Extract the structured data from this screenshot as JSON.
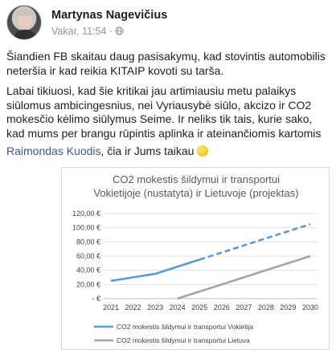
{
  "post": {
    "author": "Martynas Nagevičius",
    "timestamp": "Vakar, 11:54",
    "separator": "·",
    "privacy_icon": "globe-icon",
    "paragraph1": "Šiandien FB skaitau daug pasisakymų, kad stovintis automobilis neteršia ir kad reikia KITAIP kovoti su tarša.",
    "paragraph2": "Labai tikiuosi, kad šie kritikai jau artimiausiu metu palaikys siūlomus ambicingesnius, nei Vyriausybė siūlo, akcizo ir CO2 mokesčio kėlimo siūlymus Seime. Ir neliks tik tais, kurie sako, kad mums per brangu rūpintis aplinka ir ateinančiomis kartomis",
    "mention": "Raimondas Kuodis",
    "mention_suffix": ", čia ir Jums taikau",
    "emoji": "slightly-smiling-face"
  },
  "chart_data": {
    "type": "line",
    "title_line1": "CO2 mokestis šildymui ir transportui",
    "title_line2": "Vokietijoje (nustatyta) ir Lietuvoje (projektas)",
    "categories": [
      "2021",
      "2022",
      "2023",
      "2024",
      "2025",
      "2026",
      "2027",
      "2028",
      "2029",
      "2030"
    ],
    "y_ticks": [
      "120,00 €",
      "100,00 €",
      "80,00 €",
      "60,00 €",
      "40,00 €",
      "20,00 €",
      "-  €"
    ],
    "ylim": [
      0,
      120
    ],
    "grid": true,
    "legend_position": "bottom",
    "series": [
      {
        "name": "CO2 mokestis šildymui ir transportui Vokietija",
        "color": "#5b9bd5",
        "solid_until_index": 4,
        "values": [
          25,
          30,
          35,
          45,
          55,
          65,
          75,
          85,
          95,
          105
        ]
      },
      {
        "name": "CO2 mokestis šildymui ir transportui Lietuva",
        "color": "#a5a5a5",
        "values": [
          0,
          0,
          0,
          0,
          10,
          20,
          30,
          40,
          50,
          60
        ]
      }
    ]
  }
}
